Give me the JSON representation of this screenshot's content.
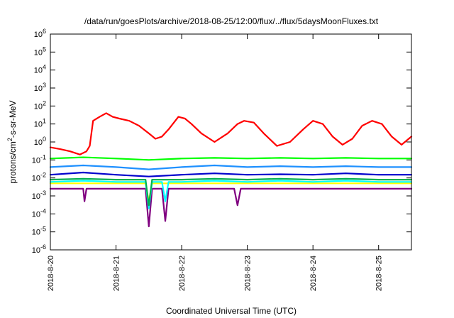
{
  "chart_data": {
    "type": "line",
    "title": "/data/run/goesPlots/archive/2018-08-25/12:00/flux/../flux/5daysMoonFluxes.txt",
    "xlabel": "Coordinated Universal Time (UTC)",
    "ylabel": "protons/cm²-s-sr-MeV",
    "ylabel_parts": {
      "pre": "protons/cm",
      "sup": "2",
      "post": "-s-sr-MeV"
    },
    "xlim": [
      0,
      5.5
    ],
    "ylim_log10": [
      -6,
      6
    ],
    "yscale": "log",
    "grid": false,
    "legend": "none",
    "x_ticks": [
      {
        "x": 0,
        "label": "2018-8-20"
      },
      {
        "x": 1,
        "label": "2018-8-21"
      },
      {
        "x": 2,
        "label": "2018-8-22"
      },
      {
        "x": 3,
        "label": "2018-8-23"
      },
      {
        "x": 4,
        "label": "2018-8-24"
      },
      {
        "x": 5,
        "label": "2018-8-25"
      }
    ],
    "y_ticks": [
      {
        "exp": -6,
        "base": "10",
        "sup": "-6"
      },
      {
        "exp": -5,
        "base": "10",
        "sup": "-5"
      },
      {
        "exp": -4,
        "base": "10",
        "sup": "-4"
      },
      {
        "exp": -3,
        "base": "10",
        "sup": "-3"
      },
      {
        "exp": -2,
        "base": "10",
        "sup": "-2"
      },
      {
        "exp": -1,
        "base": "10",
        "sup": "-1"
      },
      {
        "exp": 0,
        "base": "10",
        "sup": "0"
      },
      {
        "exp": 1,
        "base": "10",
        "sup": "1"
      },
      {
        "exp": 2,
        "base": "10",
        "sup": "2"
      },
      {
        "exp": 3,
        "base": "10",
        "sup": "3"
      },
      {
        "exp": 4,
        "base": "10",
        "sup": "4"
      },
      {
        "exp": 5,
        "base": "10",
        "sup": "5"
      },
      {
        "exp": 6,
        "base": "10",
        "sup": "6"
      }
    ],
    "series": [
      {
        "color": "#ffff00",
        "x": [
          0,
          0.5,
          1.45,
          1.5,
          1.55,
          2,
          2.5,
          3,
          3.5,
          4,
          4.5,
          5,
          5.5
        ],
        "y": [
          0.005,
          0.005,
          0.005,
          0.0005,
          0.005,
          0.005,
          0.005,
          0.005,
          0.005,
          0.005,
          0.005,
          0.005,
          0.005
        ]
      },
      {
        "color": "#800080",
        "x": [
          0,
          0.5,
          0.52,
          0.55,
          1,
          1.45,
          1.5,
          1.55,
          1.7,
          1.75,
          1.8,
          2,
          2.8,
          2.85,
          2.9,
          3.5,
          4,
          4.5,
          5,
          5.5
        ],
        "y": [
          0.0025,
          0.0025,
          0.0005,
          0.0025,
          0.0025,
          0.0025,
          2e-05,
          0.0025,
          0.0025,
          4e-05,
          0.0025,
          0.0025,
          0.0025,
          0.0003,
          0.0025,
          0.0025,
          0.0025,
          0.0025,
          0.0025,
          0.0025
        ]
      },
      {
        "color": "#00ffff",
        "x": [
          0,
          0.5,
          1,
          1.45,
          1.5,
          1.55,
          1.7,
          1.75,
          1.8,
          2,
          2.5,
          3,
          3.5,
          4,
          4.5,
          5,
          5.5
        ],
        "y": [
          0.006,
          0.007,
          0.006,
          0.006,
          0.0002,
          0.006,
          0.006,
          0.0005,
          0.006,
          0.006,
          0.007,
          0.006,
          0.007,
          0.006,
          0.007,
          0.006,
          0.006
        ]
      },
      {
        "color": "#00b050",
        "x": [
          0,
          0.5,
          1,
          1.45,
          1.5,
          1.55,
          2,
          2.5,
          3,
          3.5,
          4,
          4.5,
          5,
          5.5
        ],
        "y": [
          0.008,
          0.009,
          0.008,
          0.008,
          0.0003,
          0.008,
          0.008,
          0.009,
          0.008,
          0.009,
          0.008,
          0.009,
          0.008,
          0.008
        ]
      },
      {
        "color": "#0000cd",
        "x": [
          0,
          0.5,
          1,
          1.5,
          2,
          2.5,
          3,
          3.5,
          4,
          4.5,
          5,
          5.5
        ],
        "y": [
          0.015,
          0.02,
          0.015,
          0.012,
          0.015,
          0.018,
          0.015,
          0.016,
          0.015,
          0.018,
          0.015,
          0.015
        ]
      },
      {
        "color": "#1e90ff",
        "x": [
          0,
          0.5,
          1,
          1.5,
          2,
          2.5,
          3,
          3.5,
          4,
          4.5,
          5,
          5.5
        ],
        "y": [
          0.04,
          0.05,
          0.04,
          0.03,
          0.04,
          0.05,
          0.04,
          0.045,
          0.04,
          0.045,
          0.04,
          0.04
        ]
      },
      {
        "color": "#00ff00",
        "x": [
          0,
          0.5,
          1,
          1.5,
          2,
          2.5,
          3,
          3.5,
          4,
          4.5,
          5,
          5.5
        ],
        "y": [
          0.12,
          0.14,
          0.12,
          0.1,
          0.12,
          0.13,
          0.12,
          0.13,
          0.12,
          0.13,
          0.12,
          0.12
        ]
      },
      {
        "color": "#ff0000",
        "x": [
          0,
          0.15,
          0.3,
          0.45,
          0.55,
          0.6,
          0.65,
          0.75,
          0.85,
          0.95,
          1.05,
          1.2,
          1.35,
          1.5,
          1.6,
          1.7,
          1.8,
          1.95,
          2.05,
          2.15,
          2.3,
          2.5,
          2.7,
          2.85,
          2.95,
          3.1,
          3.25,
          3.45,
          3.65,
          3.85,
          4.0,
          4.15,
          4.3,
          4.45,
          4.6,
          4.75,
          4.9,
          5.05,
          5.2,
          5.35,
          5.5
        ],
        "y": [
          0.5,
          0.4,
          0.3,
          0.2,
          0.3,
          0.6,
          15,
          25,
          40,
          25,
          20,
          15,
          8,
          3,
          1.5,
          2,
          5,
          25,
          20,
          10,
          3,
          1,
          3,
          10,
          15,
          12,
          3,
          0.6,
          1,
          5,
          15,
          10,
          2,
          0.7,
          1.5,
          8,
          15,
          10,
          2,
          0.7,
          2
        ]
      }
    ]
  }
}
